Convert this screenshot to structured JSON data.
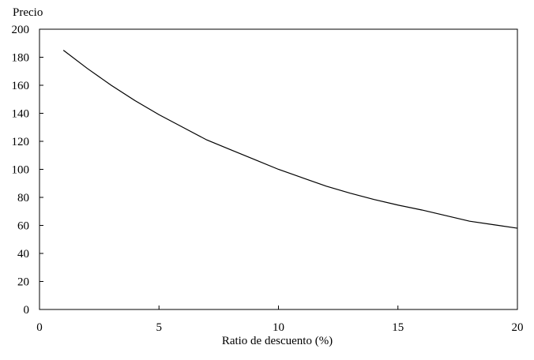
{
  "chart_data": {
    "type": "line",
    "title": "",
    "xlabel": "Ratio de descuento (%)",
    "ylabel": "Precio",
    "xlim": [
      0,
      20
    ],
    "ylim": [
      0,
      200
    ],
    "x_ticks": [
      0,
      5,
      10,
      15,
      20
    ],
    "y_ticks": [
      0,
      20,
      40,
      60,
      80,
      100,
      120,
      140,
      160,
      180,
      200
    ],
    "grid": false,
    "legend": "none",
    "line_color": "#000000",
    "series": [
      {
        "x": [
          1,
          2,
          3,
          4,
          5,
          6,
          7,
          8,
          9,
          10,
          11,
          12,
          13,
          14,
          15,
          16,
          17,
          18,
          19,
          20
        ],
        "values": [
          185,
          172,
          160,
          149,
          139,
          130,
          121,
          114,
          107,
          100,
          94,
          88,
          83,
          78.5,
          74.5,
          71,
          67,
          63,
          60.5,
          58
        ]
      }
    ]
  }
}
